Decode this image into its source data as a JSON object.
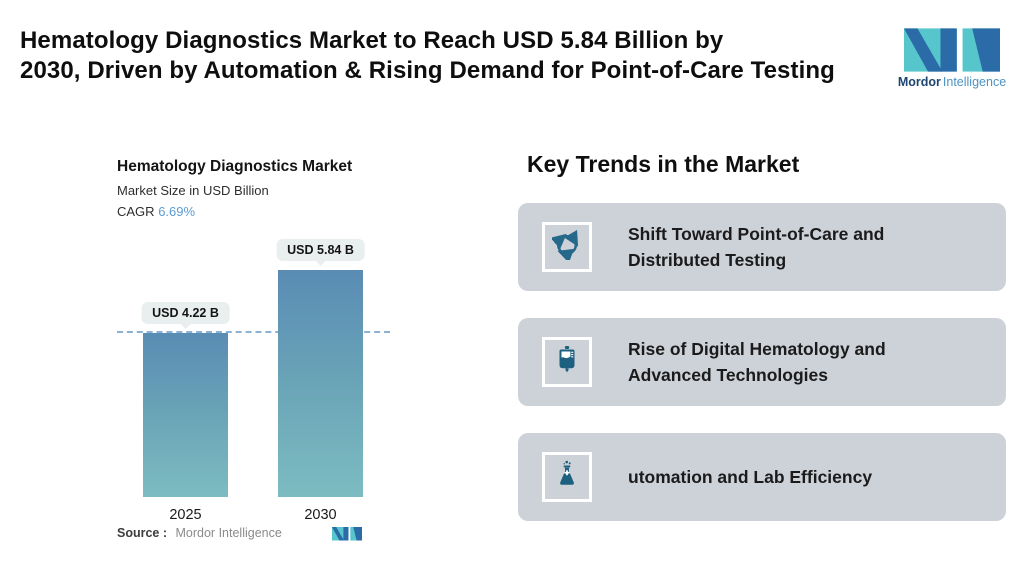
{
  "header": {
    "title_lines": [
      "Hematology Diagnostics Market to Reach USD 5.84 Billion by",
      "2030, Driven by Automation & Rising Demand for Point-of-Care Testing"
    ],
    "logo": {
      "brand_bold": "Mordor",
      "brand_light": "Intelligence"
    }
  },
  "chart": {
    "title": "Hematology Diagnostics Market",
    "subtitle": "Market Size in USD Billion",
    "cagr_label": "CAGR",
    "cagr_value": "6.69%",
    "source_label": "Source :",
    "source_value": "Mordor Intelligence"
  },
  "chart_data": {
    "type": "bar",
    "title": "Hematology Diagnostics Market",
    "subtitle": "Market Size in USD Billion",
    "cagr": "6.69%",
    "categories": [
      "2025",
      "2030"
    ],
    "values": [
      4.22,
      5.84
    ],
    "bar_labels": [
      "USD 4.22 B",
      "USD 5.84 B"
    ],
    "ylabel": "Market Size in USD Billion",
    "reference_line": 4.22,
    "legend": "none",
    "grid": "off"
  },
  "key_trends": {
    "heading": "Key Trends in the Market",
    "cards": [
      {
        "icon": "recycle-icon",
        "text": "Shift Toward Point-of-Care and Distributed Testing"
      },
      {
        "icon": "blood-bag-icon",
        "text": "Rise of Digital Hematology and Advanced Technologies"
      },
      {
        "icon": "flask-icon",
        "text": "utomation and Lab Efficiency"
      }
    ]
  },
  "colors": {
    "brand_teal": "#56c5cc",
    "brand_blue": "#2b6ca8",
    "card_background": "#cdd1d8",
    "icon_color": "#1d6080",
    "bar_gradient_top": "#5a8cb4",
    "bar_gradient_bottom": "#7cbcc1",
    "dashed_line": "#8cb2d3",
    "cagr_blue": "#5b9bd5",
    "bubble_background": "#e9efef"
  }
}
